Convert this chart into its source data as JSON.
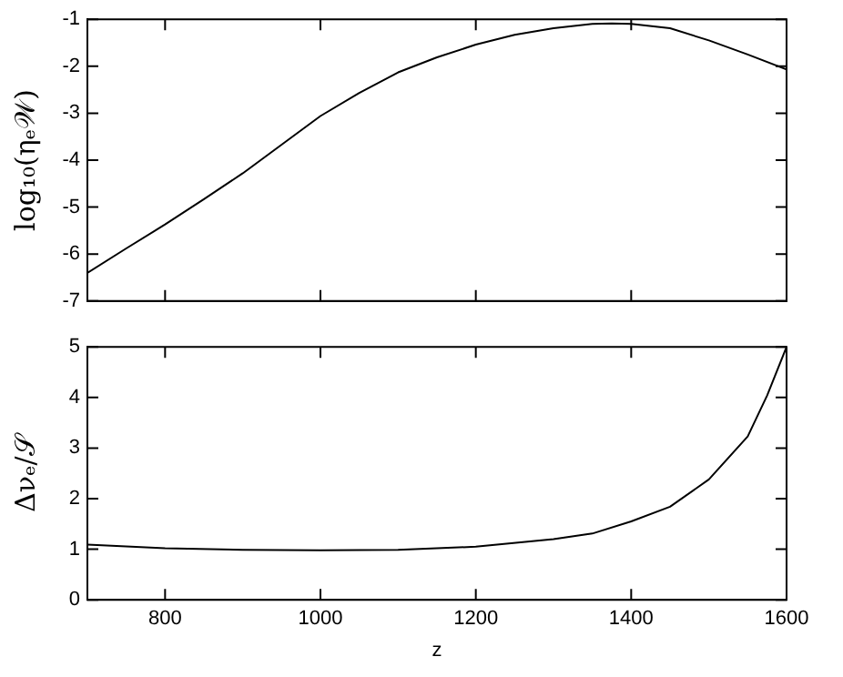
{
  "chart_data": [
    {
      "type": "line",
      "ylabel": "log₁₀(ηₑ𝒲)",
      "tick_labels": "y",
      "x": [
        700,
        750,
        800,
        850,
        900,
        950,
        1000,
        1050,
        1100,
        1150,
        1200,
        1250,
        1300,
        1350,
        1375,
        1400,
        1450,
        1500,
        1550,
        1600
      ],
      "series": [
        {
          "color": "#000000",
          "values": [
            -6.4,
            -5.88,
            -5.37,
            -4.83,
            -4.28,
            -3.67,
            -3.06,
            -2.57,
            -2.13,
            -1.81,
            -1.54,
            -1.33,
            -1.19,
            -1.1,
            -1.09,
            -1.1,
            -1.19,
            -1.45,
            -1.75,
            -2.07
          ]
        }
      ],
      "xlim": [
        700,
        1600
      ],
      "xticks": [
        {
          "value": 700,
          "label": null
        },
        {
          "value": 800,
          "label": null
        },
        {
          "value": 1000,
          "label": null
        },
        {
          "value": 1200,
          "label": null
        },
        {
          "value": 1400,
          "label": null
        },
        {
          "value": 1600,
          "label": null
        }
      ],
      "ylim": [
        -7,
        -1
      ],
      "yticks": [
        -7,
        -6,
        -5,
        -4,
        -3,
        -2,
        -1
      ],
      "grid": false,
      "marker": "none",
      "line_style": "solid"
    },
    {
      "type": "line",
      "xlabel": "z",
      "ylabel": "Δνₑ/𝒮",
      "x": [
        700,
        800,
        900,
        1000,
        1100,
        1200,
        1300,
        1350,
        1400,
        1450,
        1500,
        1550,
        1575,
        1600
      ],
      "series": [
        {
          "color": "#000000",
          "values": [
            1.09,
            1.02,
            0.99,
            0.98,
            0.99,
            1.05,
            1.2,
            1.31,
            1.55,
            1.84,
            2.38,
            3.23,
            4.04,
            5.0
          ]
        }
      ],
      "xlim": [
        700,
        1600
      ],
      "xticks": [
        {
          "value": 700,
          "label": null
        },
        800,
        1000,
        1200,
        1400,
        1600
      ],
      "ylim": [
        0,
        5
      ],
      "yticks": [
        0,
        1,
        2,
        3,
        4,
        5
      ],
      "grid": false,
      "marker": "none",
      "line_style": "solid"
    }
  ]
}
